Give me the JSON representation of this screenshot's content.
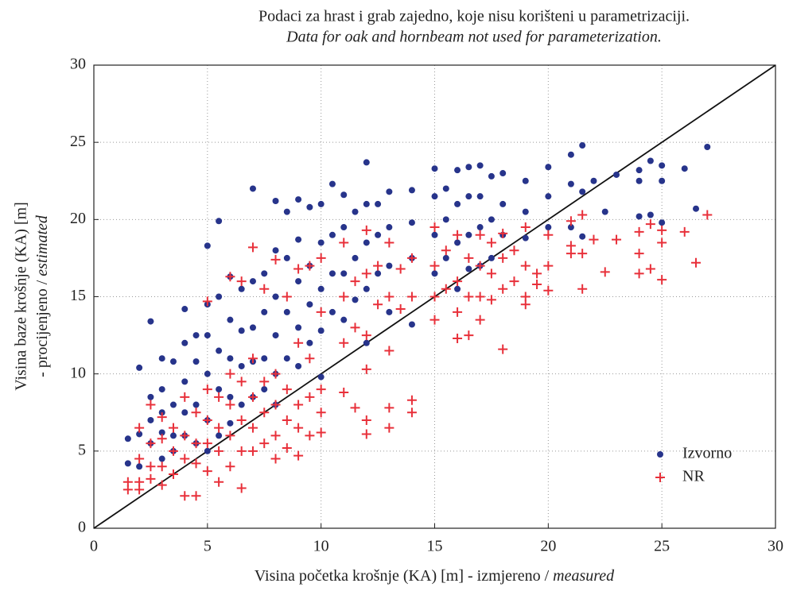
{
  "chart_data": {
    "type": "scatter",
    "title": "Podaci za hrast i grab zajedno, koje nisu korišteni u parametrizaciji.",
    "subtitle": "Data for oak and hornbeam not used for parameterization.",
    "xlabel": "Visina početka krošnje (KA) [m] - izmjereno /",
    "xlabel_italic": "measured",
    "ylabel": "Visina baze  krošnje (KA) [m]",
    "ylabel_line2": "- procijenjeno /",
    "ylabel_italic": "estimated",
    "xlim": [
      0,
      30
    ],
    "ylim": [
      0,
      30
    ],
    "xticks": [
      0,
      5,
      10,
      15,
      20,
      25,
      30
    ],
    "yticks": [
      0,
      5,
      10,
      15,
      20,
      25,
      30
    ],
    "grid": true,
    "legend": "lower right",
    "series": [
      {
        "name": "Izvorno",
        "color": "#27348b",
        "marker": "circle",
        "x": [
          1.5,
          1.5,
          2,
          2,
          2,
          2.5,
          2.5,
          2.5,
          2.5,
          3,
          3,
          3,
          3,
          3,
          3.5,
          3.5,
          3.5,
          3.5,
          4,
          4,
          4,
          4,
          4,
          4.5,
          4.5,
          4.5,
          4.5,
          5,
          5,
          5,
          5,
          5,
          5,
          5.5,
          5.5,
          5.5,
          5.5,
          5.5,
          6,
          6,
          6,
          6,
          6,
          6.5,
          6.5,
          6.5,
          6.5,
          7,
          7,
          7,
          7,
          7,
          7.5,
          7.5,
          7.5,
          7.5,
          8,
          8,
          8,
          8,
          8,
          8,
          8.5,
          8.5,
          8.5,
          8.5,
          9,
          9,
          9,
          9,
          9,
          9.5,
          9.5,
          9.5,
          9.5,
          10,
          10,
          10,
          10,
          10,
          10.5,
          10.5,
          10.5,
          10.5,
          11,
          11,
          11,
          11,
          11.5,
          11.5,
          11.5,
          12,
          12,
          12,
          12,
          12,
          12.5,
          12.5,
          12.5,
          13,
          13,
          13,
          13,
          14,
          14,
          14,
          14,
          15,
          15,
          15,
          15,
          15.5,
          15.5,
          15.5,
          16,
          16,
          16,
          16,
          16.5,
          16.5,
          16.5,
          16.5,
          17,
          17,
          17,
          17,
          17.5,
          17.5,
          17.5,
          18,
          18,
          18,
          19,
          19,
          19,
          20,
          20,
          20,
          21,
          21,
          21,
          21.5,
          21.5,
          21.5,
          22,
          22.5,
          23,
          24,
          24,
          24,
          24.5,
          24.5,
          25,
          25,
          25,
          26,
          26.5,
          27
        ],
        "y": [
          4.2,
          5.8,
          4,
          10.4,
          6.1,
          13.4,
          8.5,
          7,
          5.5,
          11,
          9,
          7.5,
          6.2,
          4.5,
          10.8,
          8,
          6,
          5,
          14.2,
          12,
          9.5,
          7.5,
          6,
          12.5,
          10.8,
          8,
          5.5,
          18.3,
          14.5,
          12.5,
          10,
          7,
          5,
          19.9,
          15,
          11.5,
          9,
          6,
          16.3,
          13.5,
          11,
          8.5,
          6.8,
          15.5,
          12.8,
          10.5,
          8,
          22,
          16,
          13,
          10.8,
          8.5,
          16.5,
          14,
          11,
          9,
          21.2,
          18,
          15,
          12.5,
          10,
          8,
          20.5,
          17.5,
          14,
          11,
          21.3,
          18.7,
          16,
          13,
          10.5,
          20.8,
          17,
          14.5,
          12,
          21,
          18.5,
          15.5,
          12.8,
          9.8,
          22.3,
          19,
          16.5,
          14,
          21.6,
          19.5,
          16.5,
          13.5,
          20.5,
          17.5,
          14.8,
          23.7,
          21,
          18.5,
          15.5,
          12,
          21,
          19,
          16.5,
          21.8,
          19.5,
          17,
          14,
          21.9,
          19.8,
          17.5,
          13.2,
          23.3,
          21.5,
          19,
          16.5,
          22,
          20,
          17.5,
          23.2,
          21,
          18.5,
          15.5,
          23.4,
          21.5,
          19,
          16.8,
          23.5,
          21.5,
          19.5,
          17,
          22.8,
          20,
          17.5,
          23,
          21,
          19,
          22.5,
          20.5,
          18.8,
          23.4,
          21.5,
          19.5,
          24.2,
          22.3,
          19.5,
          24.8,
          21.8,
          18.9,
          22.5,
          20.5,
          22.9,
          23.2,
          22.5,
          20.2,
          23.8,
          20.3,
          23.5,
          22.5,
          19.8,
          23.3,
          20.7,
          24.7
        ]
      },
      {
        "name": "NR",
        "color": "#e8303a",
        "marker": "plus",
        "x": [
          1.5,
          1.5,
          2,
          2,
          2,
          2,
          2.5,
          2.5,
          2.5,
          2.5,
          3,
          3,
          3,
          3,
          3.5,
          3.5,
          3.5,
          4,
          4,
          4,
          4,
          4.5,
          4.5,
          4.5,
          4.5,
          5,
          5,
          5,
          5,
          5,
          5.5,
          5.5,
          5.5,
          5.5,
          6,
          6,
          6,
          6,
          6,
          6.5,
          6.5,
          6.5,
          6.5,
          6.5,
          7,
          7,
          7,
          7,
          7,
          7.5,
          7.5,
          7.5,
          7.5,
          8,
          8,
          8,
          8,
          8,
          8.5,
          8.5,
          8.5,
          8.5,
          9,
          9,
          9,
          9,
          9,
          9.5,
          9.5,
          9.5,
          9.5,
          10,
          10,
          10,
          10,
          10,
          11,
          11,
          11,
          11,
          11.5,
          11.5,
          11.5,
          12,
          12,
          12,
          12,
          12,
          12,
          12.5,
          12.5,
          13,
          13,
          13,
          13,
          13,
          13.5,
          13.5,
          14,
          14,
          14,
          14,
          15,
          15,
          15,
          15,
          15.5,
          15.5,
          16,
          16,
          16,
          16,
          16.5,
          16.5,
          16.5,
          17,
          17,
          17,
          17,
          17.5,
          17.5,
          17.5,
          18,
          18,
          18,
          18,
          18.5,
          18.5,
          19,
          19,
          19,
          19,
          19.5,
          19.5,
          20,
          20,
          20,
          21,
          21,
          21,
          21.5,
          21.5,
          21.5,
          22,
          22.5,
          23,
          24,
          24,
          24,
          24.5,
          24.5,
          25,
          25,
          25,
          26,
          26.5,
          27
        ],
        "y": [
          2.5,
          3,
          6.5,
          4.5,
          3,
          2.5,
          8,
          5.5,
          4,
          3.2,
          7.2,
          5.8,
          4,
          2.8,
          6.5,
          5,
          3.5,
          8.5,
          6,
          4.5,
          2.1,
          7.5,
          5.5,
          4.2,
          2.1,
          14.7,
          9,
          7,
          5.5,
          3.7,
          8.5,
          6.5,
          5,
          3,
          16.3,
          10,
          8,
          6,
          4,
          16,
          9.5,
          7,
          5,
          2.6,
          18.2,
          11,
          8.5,
          6.5,
          5,
          15.5,
          9.5,
          7.5,
          5.5,
          17.4,
          10,
          8,
          6,
          4.5,
          15,
          9,
          7,
          5.2,
          16.8,
          12,
          8,
          6.5,
          4.7,
          17,
          11,
          8.5,
          6,
          17.5,
          14,
          9,
          7.5,
          6.2,
          18.5,
          15,
          12,
          8.8,
          16,
          13,
          7.8,
          19.3,
          16.5,
          12.5,
          10.3,
          7,
          6.1,
          17,
          14.5,
          18.5,
          15,
          11.5,
          7.8,
          6.5,
          16.8,
          14.2,
          17.5,
          15,
          8.3,
          7.5,
          19.5,
          17,
          15,
          13.5,
          18,
          15.5,
          19,
          16,
          14,
          12.3,
          17.5,
          15,
          12.5,
          19,
          17,
          15,
          13.5,
          18.5,
          16.5,
          14.8,
          19.1,
          17.5,
          15.5,
          11.6,
          18,
          16,
          19.5,
          17,
          15,
          14.5,
          16.5,
          15.8,
          19,
          17,
          15.4,
          19.9,
          18.3,
          17.8,
          20.3,
          17.8,
          15.5,
          18.7,
          16.6,
          18.7,
          19.2,
          17.8,
          16.5,
          19.7,
          16.8,
          19.3,
          18.5,
          16.1,
          19.2,
          17.2,
          20.3
        ]
      }
    ]
  }
}
